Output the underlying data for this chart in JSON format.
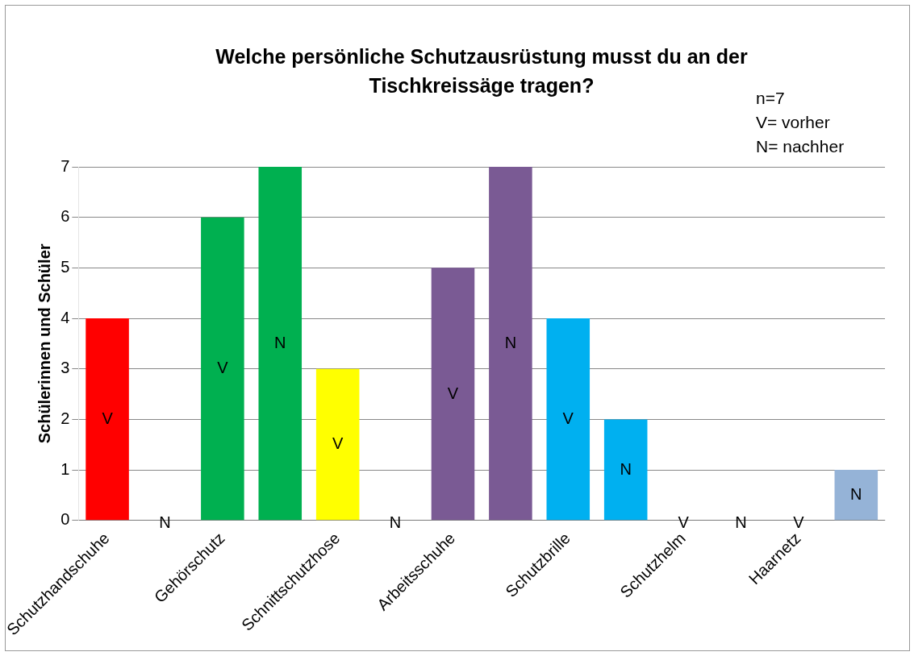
{
  "chart_data": {
    "type": "bar",
    "title": "Welche persönliche Schutzausrüstung musst du an der Tischkreissäge tragen?",
    "ylabel": "Schülerinnen und Schüler",
    "categories": [
      "Schutzhandschuhe",
      null,
      "Gehörschutz",
      null,
      "Schnittschutzhose",
      null,
      "Arbeitsschuhe",
      null,
      "Schutzbrille",
      null,
      "Schutzhelm",
      null,
      "Haarnetz",
      null
    ],
    "values": [
      4,
      0,
      6,
      7,
      3,
      0,
      5,
      7,
      4,
      2,
      0,
      0,
      0,
      1
    ],
    "colors": [
      "#ff0000",
      "#ff0000",
      "#00b050",
      "#00b050",
      "#ffff00",
      "#ffff00",
      "#7a5a94",
      "#7a5a94",
      "#00b0f0",
      "#00b0f0",
      "#c0773c",
      "#c0773c",
      "#95b3d7",
      "#95b3d7"
    ],
    "value_labels": [
      "V",
      "N",
      "V",
      "N",
      "V",
      "N",
      "V",
      "N",
      "V",
      "N",
      "V",
      "N",
      "V",
      "N"
    ],
    "ylim": [
      0,
      7
    ],
    "yticks": [
      0,
      1,
      2,
      3,
      4,
      5,
      6,
      7
    ],
    "grid": "y",
    "annotations": [
      "n=7",
      "V= vorher",
      "N= nachher"
    ]
  }
}
